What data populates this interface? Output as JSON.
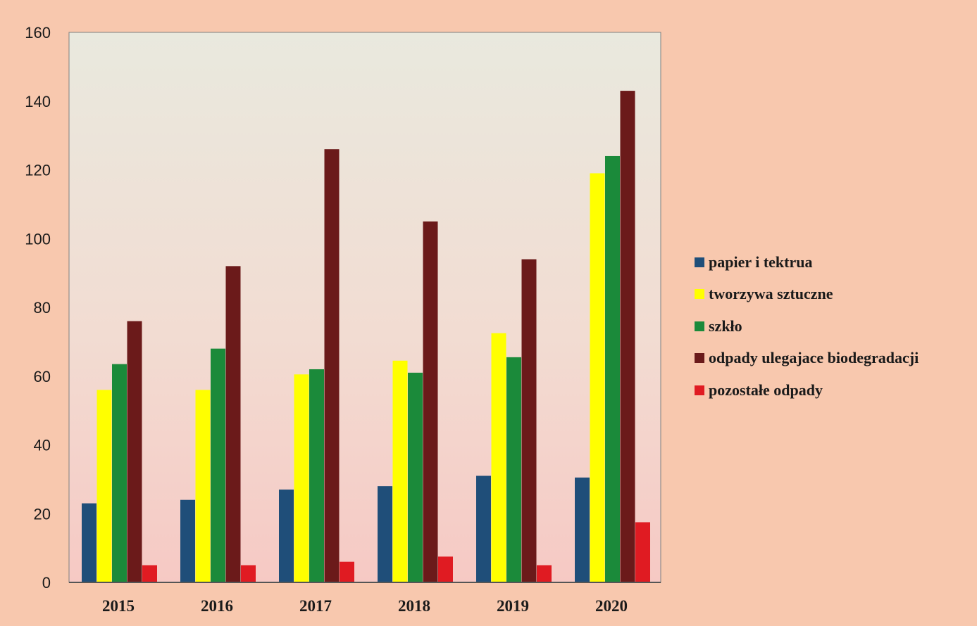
{
  "chart_data": {
    "type": "bar",
    "title": "",
    "xlabel": "",
    "ylabel": "",
    "ylim": [
      0,
      160
    ],
    "yticks": [
      0,
      20,
      40,
      60,
      80,
      100,
      120,
      140,
      160
    ],
    "grid": false,
    "legend_position": "right",
    "categories": [
      "2015",
      "2016",
      "2017",
      "2018",
      "2019",
      "2020"
    ],
    "series": [
      {
        "name": "papier i tektrua",
        "color": "#1f4e79",
        "values": [
          23,
          24,
          27,
          28,
          31,
          30.5
        ]
      },
      {
        "name": "tworzywa sztuczne",
        "color": "#ffff00",
        "values": [
          56,
          56,
          60.5,
          64.5,
          72.5,
          119
        ]
      },
      {
        "name": "szkło",
        "color": "#1b8a3a",
        "values": [
          63.5,
          68,
          62,
          61,
          65.5,
          124
        ]
      },
      {
        "name": "odpady ulegajace biodegradacji",
        "color": "#6b1a1a",
        "values": [
          76,
          92,
          126,
          105,
          94,
          143
        ]
      },
      {
        "name": "pozostałe odpady",
        "color": "#e01b22",
        "values": [
          5,
          5,
          6,
          7.5,
          5,
          17.5
        ]
      }
    ]
  }
}
